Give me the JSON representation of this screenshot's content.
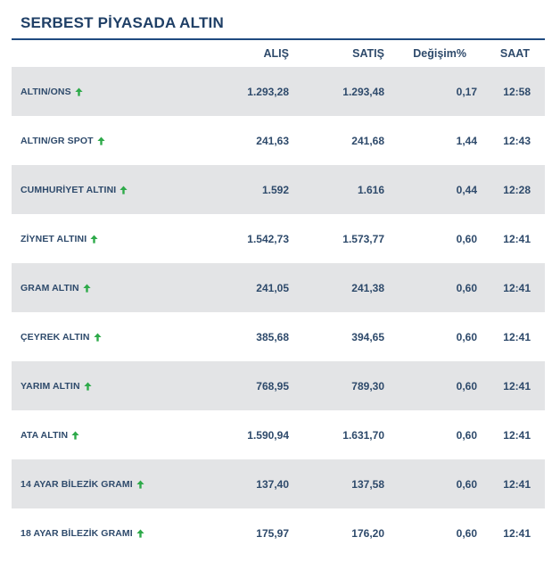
{
  "title": "SERBEST PİYASADA ALTIN",
  "colors": {
    "title": "#1f3f66",
    "underline": "#1f4a80",
    "text": "#2e4a6b",
    "shaded_row": "#e3e4e6",
    "arrow_up": "#2eaa4a"
  },
  "columns": {
    "buy": "ALIŞ",
    "sell": "SATIŞ",
    "change": "Değişim%",
    "time": "SAAT"
  },
  "rows": [
    {
      "name": "ALTIN/ONS",
      "trend": "up-arrow-icon",
      "buy": "1.293,28",
      "sell": "1.293,48",
      "change": "0,17",
      "time": "12:58"
    },
    {
      "name": "ALTIN/GR SPOT",
      "trend": "up-arrow-icon",
      "buy": "241,63",
      "sell": "241,68",
      "change": "1,44",
      "time": "12:43"
    },
    {
      "name": "CUMHURİYET ALTINI",
      "trend": "up-arrow-icon",
      "buy": "1.592",
      "sell": "1.616",
      "change": "0,44",
      "time": "12:28"
    },
    {
      "name": "ZİYNET ALTINI",
      "trend": "up-arrow-icon",
      "buy": "1.542,73",
      "sell": "1.573,77",
      "change": "0,60",
      "time": "12:41"
    },
    {
      "name": "GRAM ALTIN",
      "trend": "up-arrow-icon",
      "buy": "241,05",
      "sell": "241,38",
      "change": "0,60",
      "time": "12:41"
    },
    {
      "name": "ÇEYREK ALTIN",
      "trend": "up-arrow-icon",
      "buy": "385,68",
      "sell": "394,65",
      "change": "0,60",
      "time": "12:41"
    },
    {
      "name": "YARIM ALTIN",
      "trend": "up-arrow-icon",
      "buy": "768,95",
      "sell": "789,30",
      "change": "0,60",
      "time": "12:41"
    },
    {
      "name": "ATA ALTIN",
      "trend": "up-arrow-icon",
      "buy": "1.590,94",
      "sell": "1.631,70",
      "change": "0,60",
      "time": "12:41"
    },
    {
      "name": "14 AYAR BİLEZİK GRAMI",
      "trend": "up-arrow-icon",
      "buy": "137,40",
      "sell": "137,58",
      "change": "0,60",
      "time": "12:41"
    },
    {
      "name": "18 AYAR BİLEZİK GRAMI",
      "trend": "up-arrow-icon",
      "buy": "175,97",
      "sell": "176,20",
      "change": "0,60",
      "time": "12:41"
    }
  ]
}
